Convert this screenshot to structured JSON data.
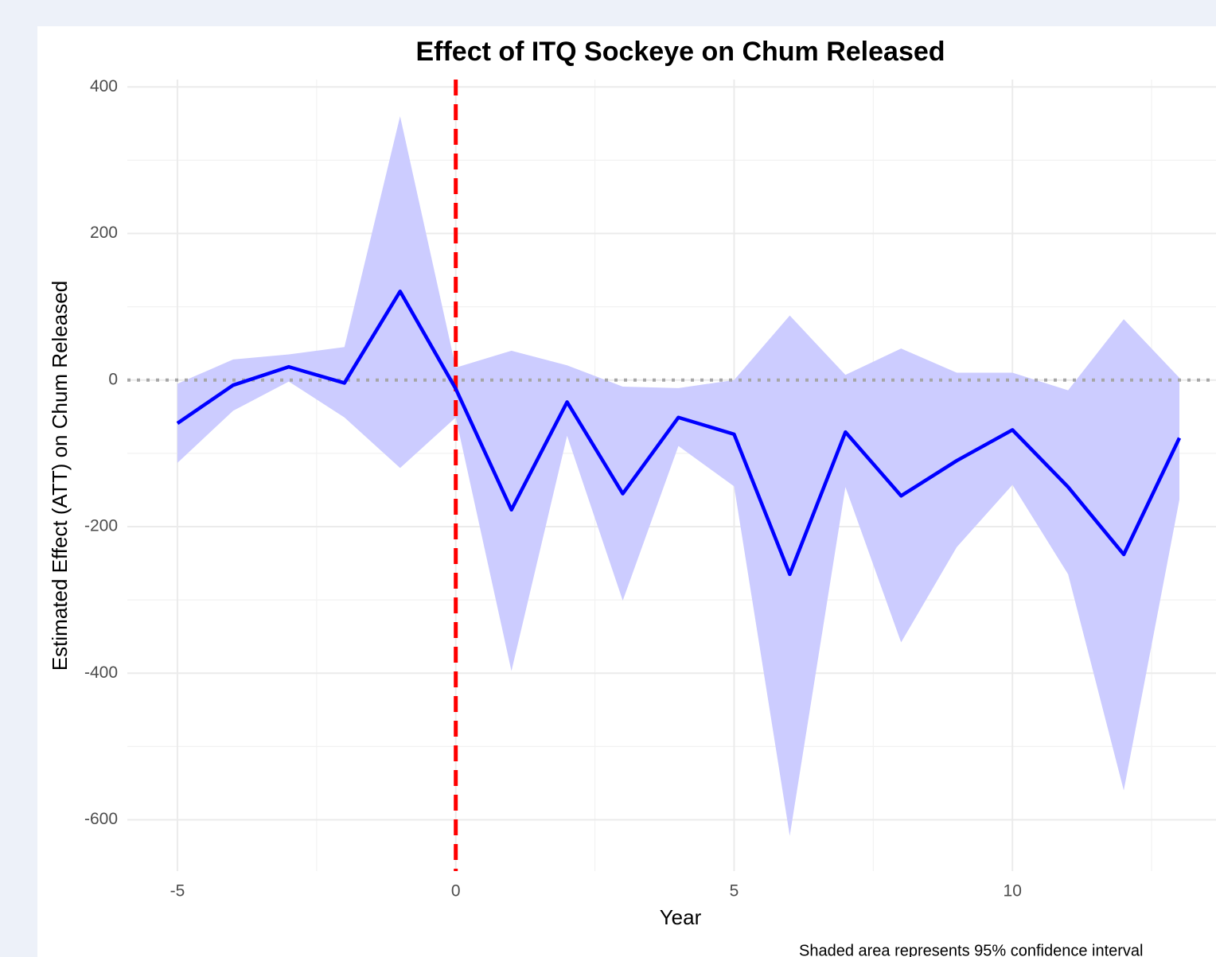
{
  "chart_data": {
    "type": "line",
    "title": "Effect of ITQ Sockeye on Chum Released",
    "x_label": "Year",
    "y_label": "Estimated Effect (ATT) on Chum Released",
    "caption": "Shaded area represents 95% confidence interval",
    "x": [
      -5,
      -4,
      -3,
      -2,
      -1,
      0,
      1,
      2,
      3,
      4,
      5,
      6,
      7,
      8,
      9,
      10,
      11,
      12,
      13
    ],
    "estimate": [
      -59,
      -7,
      18,
      -4,
      121,
      -12,
      -177,
      -30,
      -155,
      -51,
      -74,
      -265,
      -71,
      -158,
      -110,
      -68,
      -146,
      -238,
      -79
    ],
    "ci_upper": [
      -5,
      28,
      35,
      45,
      360,
      17,
      40,
      20,
      -9,
      -11,
      0,
      88,
      7,
      43,
      10,
      10,
      -14,
      83,
      3
    ],
    "ci_lower": [
      -113,
      -42,
      -2,
      -51,
      -120,
      -51,
      -397,
      -76,
      -301,
      -90,
      -145,
      -622,
      -146,
      -358,
      -228,
      -143,
      -265,
      -560,
      -163
    ],
    "line_color": "#0000ff",
    "ribbon_color": "#ccccff",
    "vline": 0,
    "vline_color": "#ff0000",
    "hline": 0,
    "hline_color": "#a6a6a6",
    "xlim": [
      -5.9,
      13.9
    ],
    "ylim": [
      -670,
      410
    ],
    "xticks": [
      -5,
      0,
      5,
      10
    ],
    "yticks": [
      -600,
      -400,
      -200,
      0,
      200,
      400
    ],
    "x_minor_grid": [
      -2.5,
      2.5,
      7.5,
      12.5
    ],
    "y_minor_grid": [
      -500,
      -300,
      -100,
      100,
      300
    ],
    "grid": true
  }
}
